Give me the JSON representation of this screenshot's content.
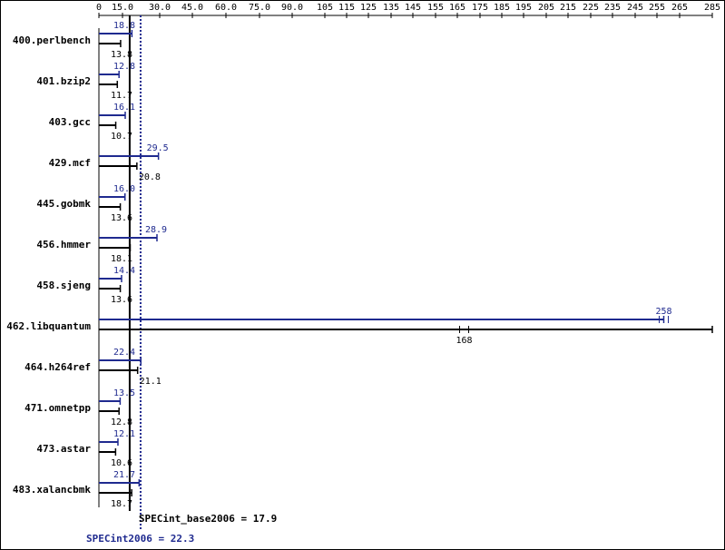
{
  "chart_data": {
    "type": "bar",
    "orientation": "horizontal",
    "title": "",
    "xlim": [
      0,
      285
    ],
    "x_ticks": [
      "0",
      "15.0",
      "30.0",
      "45.0",
      "60.0",
      "75.0",
      "90.0",
      "105",
      "115",
      "125",
      "135",
      "145",
      "155",
      "165",
      "175",
      "185",
      "195",
      "205",
      "215",
      "225",
      "235",
      "245",
      "255",
      "265",
      "285"
    ],
    "x_tick_values": [
      0,
      15,
      30,
      45,
      60,
      75,
      90,
      105,
      115,
      125,
      135,
      145,
      155,
      165,
      175,
      185,
      195,
      205,
      215,
      225,
      235,
      245,
      255,
      265,
      285
    ],
    "categories": [
      "400.perlbench",
      "401.bzip2",
      "403.gcc",
      "429.mcf",
      "445.gobmk",
      "456.hmmer",
      "458.sjeng",
      "462.libquantum",
      "464.h264ref",
      "471.omnetpp",
      "473.astar",
      "483.xalancbmk"
    ],
    "series": [
      {
        "name": "SPECint2006",
        "color": "#1f2a8f",
        "values": [
          18.8,
          12.8,
          16.1,
          29.5,
          16.0,
          28.9,
          14.4,
          258,
          22.4,
          13.5,
          12.1,
          21.7
        ],
        "labels": [
          "18.8",
          "12.8",
          "16.1",
          "29.5",
          "16.0",
          "28.9",
          "14.4",
          "258",
          "22.4",
          "13.5",
          "12.1",
          "21.7"
        ]
      },
      {
        "name": "SPECint_base2006",
        "color": "#000000",
        "values": [
          13.8,
          11.7,
          10.7,
          20.8,
          13.6,
          18.1,
          13.6,
          168,
          21.1,
          12.8,
          10.6,
          18.7
        ],
        "labels": [
          "13.8",
          "11.7",
          "10.7",
          "20.8",
          "13.6",
          "18.1",
          "13.6",
          "168",
          "21.1",
          "12.8",
          "10.6",
          "18.7"
        ]
      }
    ],
    "reference_lines": [
      {
        "name": "SPECint_base2006",
        "value": 17.9,
        "style": "solid",
        "color": "#000000"
      },
      {
        "name": "SPECint2006",
        "value": 22.3,
        "style": "dotted",
        "color": "#1f2a8f"
      }
    ],
    "summary": {
      "base_label": "SPECint_base2006 = 17.9",
      "peak_label": "SPECint2006 = 22.3"
    }
  }
}
